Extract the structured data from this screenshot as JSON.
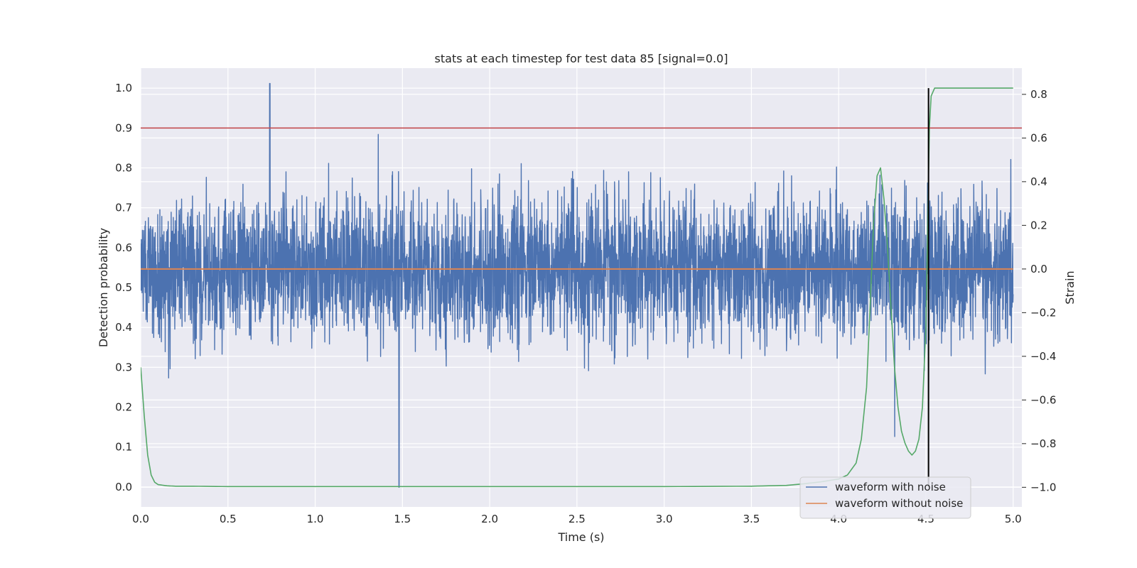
{
  "chart_data": {
    "type": "line",
    "title": "stats at each timestep for test data 85 [signal=0.0]",
    "xlabel": "Time (s)",
    "ylabel_left": "Detection probability",
    "ylabel_right": "Strain",
    "xlim": [
      0.0,
      5.05
    ],
    "ylim_left": [
      -0.05,
      1.05
    ],
    "ylim_right": [
      -1.09,
      0.92
    ],
    "x_ticks": [
      "0.0",
      "0.5",
      "1.0",
      "1.5",
      "2.0",
      "2.5",
      "3.0",
      "3.5",
      "4.0",
      "4.5",
      "5.0"
    ],
    "y_ticks_left": [
      "0.0",
      "0.1",
      "0.2",
      "0.3",
      "0.4",
      "0.5",
      "0.6",
      "0.7",
      "0.8",
      "0.9",
      "1.0"
    ],
    "y_ticks_right": [
      "−1.0",
      "−0.8",
      "−0.6",
      "−0.4",
      "−0.2",
      "0.0",
      "0.2",
      "0.4",
      "0.6",
      "0.8"
    ],
    "grid": true,
    "legend_position": "lower-right",
    "legend": [
      "waveform with noise",
      "waveform without noise"
    ],
    "series": [
      {
        "name": "waveform with noise",
        "axis": "right",
        "color": "#4c72b0",
        "description_stats": {
          "mean": 0.0,
          "std": 0.16,
          "max": 0.85,
          "min": -1.0,
          "x_max": 0.74,
          "x_min": 1.48
        },
        "x_range": [
          0.0,
          5.0
        ]
      },
      {
        "name": "waveform without noise",
        "axis": "right",
        "color": "#dd8452",
        "x": [
          0.0,
          5.0
        ],
        "y": [
          0.0,
          0.0
        ]
      },
      {
        "axis": "left",
        "color": "#55a868",
        "x": [
          0.0,
          0.02,
          0.04,
          0.06,
          0.08,
          0.1,
          0.15,
          0.2,
          0.3,
          0.5,
          1.0,
          2.0,
          3.0,
          3.5,
          3.7,
          3.8,
          3.9,
          4.0,
          4.05,
          4.1,
          4.13,
          4.16,
          4.18,
          4.2,
          4.22,
          4.24,
          4.26,
          4.28,
          4.3,
          4.32,
          4.34,
          4.36,
          4.38,
          4.4,
          4.42,
          4.44,
          4.46,
          4.48,
          4.5,
          4.51,
          4.52,
          4.53,
          4.55,
          4.6,
          4.8,
          5.0
        ],
        "y": [
          0.3,
          0.18,
          0.08,
          0.03,
          0.012,
          0.006,
          0.003,
          0.002,
          0.002,
          0.001,
          0.001,
          0.001,
          0.001,
          0.002,
          0.004,
          0.008,
          0.013,
          0.02,
          0.03,
          0.06,
          0.12,
          0.25,
          0.45,
          0.66,
          0.78,
          0.8,
          0.72,
          0.6,
          0.45,
          0.3,
          0.2,
          0.14,
          0.11,
          0.09,
          0.08,
          0.09,
          0.12,
          0.2,
          0.4,
          0.65,
          0.9,
          0.98,
          1.0,
          1.0,
          1.0,
          1.0
        ]
      },
      {
        "axis": "left",
        "color": "#c44e52",
        "x": [
          0.0,
          5.05
        ],
        "y": [
          0.9,
          0.9
        ]
      },
      {
        "axis": "left",
        "color": "#000000",
        "x": [
          4.515,
          4.515
        ],
        "y": [
          0.0,
          1.0
        ]
      }
    ]
  }
}
